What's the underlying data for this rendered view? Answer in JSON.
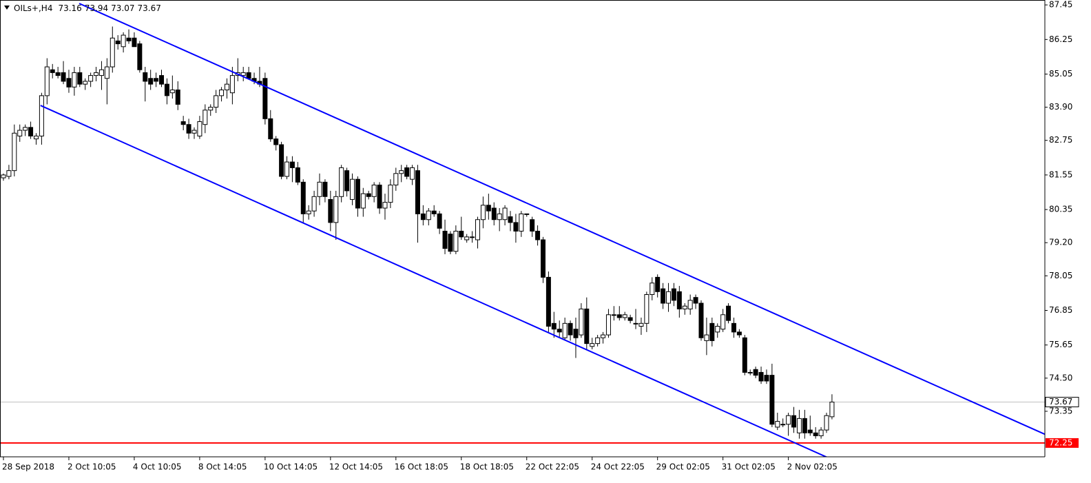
{
  "chart_data": {
    "type": "candlestick",
    "symbol": "OILs+,H4",
    "categories": [
      "28 Sep 2018",
      null,
      null,
      null,
      null,
      null,
      null,
      null,
      null,
      null,
      null,
      null,
      "2 Oct 10:05",
      null,
      null,
      null,
      null,
      null,
      null,
      null,
      null,
      null,
      null,
      null,
      "4 Oct 10:05",
      null,
      null,
      null,
      null,
      null,
      null,
      null,
      null,
      null,
      null,
      null,
      "8 Oct 14:05",
      null,
      null,
      null,
      null,
      null,
      null,
      null,
      null,
      null,
      null,
      null,
      "10 Oct 14:05",
      null,
      null,
      null,
      null,
      null,
      null,
      null,
      null,
      null,
      null,
      null,
      "12 Oct 14:05",
      null,
      null,
      null,
      null,
      null,
      null,
      null,
      null,
      null,
      null,
      null,
      "16 Oct 18:05",
      null,
      null,
      null,
      null,
      null,
      null,
      null,
      null,
      null,
      null,
      null,
      "18 Oct 18:05",
      null,
      null,
      null,
      null,
      null,
      null,
      null,
      null,
      null,
      null,
      null,
      "22 Oct 22:05",
      null,
      null,
      null,
      null,
      null,
      null,
      null,
      null,
      null,
      null,
      null,
      "24 Oct 22:05",
      null,
      null,
      null,
      null,
      null,
      null,
      null,
      null,
      null,
      null,
      null,
      "29 Oct 02:05",
      null,
      null,
      null,
      null,
      null,
      null,
      null,
      null,
      null,
      null,
      null,
      "31 Oct 02:05",
      null,
      null,
      null,
      null,
      null,
      null,
      null,
      null,
      null,
      null,
      null,
      "2 Nov 02:05",
      null,
      null,
      null,
      null,
      null,
      null,
      null,
      null
    ],
    "open": [
      81.45,
      81.5,
      81.7,
      82.9,
      83.1,
      83.2,
      82.8,
      82.9,
      84.3,
      85.2,
      85.1,
      85.1,
      84.9,
      84.6,
      85.1,
      84.7,
      84.8,
      85.0,
      85.0,
      84.9,
      85.3,
      86.2,
      86.0,
      86.3,
      86.3,
      86.1,
      85.1,
      84.9,
      84.9,
      85.0,
      84.7,
      84.4,
      84.5,
      83.4,
      83.3,
      83.0,
      82.9,
      83.3,
      83.8,
      83.9,
      84.3,
      84.5,
      84.4,
      85.0,
      85.0,
      85.1,
      84.9,
      84.8,
      84.9,
      83.5,
      82.8,
      82.6,
      81.5,
      82.0,
      81.8,
      81.3,
      80.2,
      80.3,
      80.8,
      81.3,
      80.7,
      79.9,
      80.8,
      81.7,
      80.7,
      81.4,
      80.4,
      80.9,
      80.8,
      81.2,
      80.4,
      80.6,
      81.2,
      81.6,
      81.8,
      81.4,
      81.7,
      80.2,
      80.0,
      80.3,
      80.2,
      79.6,
      79.5,
      78.9,
      79.6,
      79.3,
      79.4,
      79.3,
      80.0,
      80.5,
      80.4,
      80.0,
      80.0,
      80.1,
      79.9,
      79.6,
      80.2,
      80.0,
      79.6,
      79.3,
      78.0,
      76.4,
      76.2,
      75.9,
      76.4,
      76.2,
      76.0,
      76.9,
      75.6,
      75.7,
      75.9,
      76.0,
      76.7,
      76.7,
      76.6,
      76.6,
      76.4,
      76.3,
      76.4,
      77.4,
      78.0,
      77.6,
      77.1,
      77.6,
      77.5,
      76.9,
      76.9,
      77.3,
      77.1,
      75.8,
      76.4,
      76.1,
      76.2,
      77.0,
      76.4,
      76.1,
      75.9,
      74.7,
      74.8,
      74.7,
      74.6,
      74.6,
      72.8,
      72.9,
      72.9,
      73.2,
      72.6,
      73.1,
      72.7,
      72.6,
      72.5,
      72.7,
      73.16
    ],
    "high": [
      81.6,
      81.9,
      83.3,
      83.3,
      83.3,
      83.4,
      83.0,
      84.4,
      85.6,
      85.4,
      85.3,
      85.5,
      85.2,
      85.3,
      85.3,
      84.9,
      85.1,
      85.3,
      85.5,
      85.6,
      86.7,
      86.4,
      86.5,
      86.6,
      86.5,
      86.2,
      85.3,
      85.2,
      85.1,
      85.2,
      84.9,
      85.0,
      84.8,
      83.6,
      83.5,
      83.2,
      83.6,
      84.0,
      84.0,
      84.5,
      84.6,
      84.9,
      85.3,
      85.6,
      85.3,
      85.3,
      85.1,
      85.3,
      85.1,
      83.8,
      82.9,
      82.7,
      82.2,
      82.2,
      82.0,
      81.4,
      80.5,
      81.0,
      81.6,
      81.4,
      81.0,
      81.0,
      81.9,
      81.8,
      81.6,
      81.5,
      81.1,
      81.0,
      81.3,
      81.3,
      80.9,
      81.4,
      81.8,
      81.9,
      81.9,
      81.9,
      81.9,
      80.5,
      80.4,
      80.5,
      80.3,
      80.0,
      79.6,
      79.8,
      80.1,
      79.5,
      79.6,
      80.1,
      80.8,
      80.9,
      80.6,
      80.4,
      80.5,
      80.3,
      80.2,
      80.3,
      80.2,
      80.1,
      79.8,
      79.4,
      78.2,
      76.8,
      76.5,
      76.6,
      76.5,
      76.6,
      77.1,
      77.3,
      75.9,
      76.0,
      76.1,
      76.9,
      77.0,
      77.0,
      76.8,
      76.7,
      76.9,
      76.6,
      77.5,
      78.0,
      78.1,
      77.8,
      77.8,
      77.8,
      77.7,
      77.1,
      77.4,
      77.4,
      77.2,
      76.6,
      76.6,
      76.4,
      76.9,
      77.1,
      76.6,
      76.2,
      76.0,
      74.8,
      74.9,
      74.9,
      74.8,
      75.0,
      73.3,
      73.1,
      73.3,
      73.5,
      73.4,
      73.4,
      73.2,
      72.8,
      72.8,
      73.3,
      73.94
    ],
    "low": [
      81.35,
      81.4,
      81.5,
      82.7,
      82.9,
      82.8,
      82.6,
      82.6,
      84.0,
      84.9,
      84.9,
      84.7,
      84.4,
      84.3,
      84.6,
      84.5,
      84.6,
      84.8,
      84.5,
      84.0,
      85.1,
      85.9,
      85.8,
      86.1,
      86.0,
      85.1,
      84.1,
      84.5,
      84.6,
      84.6,
      84.0,
      84.2,
      83.8,
      83.1,
      82.8,
      82.8,
      82.8,
      83.0,
      83.6,
      83.7,
      84.1,
      84.2,
      84.0,
      84.8,
      84.8,
      84.9,
      84.7,
      84.6,
      83.3,
      82.7,
      82.4,
      81.4,
      81.4,
      81.3,
      81.2,
      79.9,
      80.0,
      80.1,
      80.5,
      80.6,
      79.6,
      79.3,
      80.6,
      80.8,
      80.5,
      80.1,
      80.1,
      80.7,
      80.6,
      80.2,
      80.0,
      80.4,
      81.0,
      81.3,
      81.4,
      81.2,
      79.2,
      79.8,
      79.8,
      80.1,
      79.5,
      78.8,
      78.8,
      78.8,
      79.3,
      79.2,
      79.2,
      79.0,
      79.7,
      80.0,
      79.8,
      79.6,
      79.8,
      79.6,
      79.2,
      79.4,
      80.1,
      79.4,
      79.1,
      77.8,
      76.1,
      75.9,
      75.9,
      75.8,
      75.8,
      75.2,
      75.9,
      75.5,
      75.5,
      75.6,
      75.7,
      75.9,
      76.5,
      76.5,
      76.5,
      76.4,
      76.2,
      76.0,
      76.1,
      77.2,
      77.3,
      76.9,
      76.8,
      77.0,
      76.6,
      76.7,
      76.7,
      76.9,
      75.8,
      75.3,
      75.6,
      75.9,
      76.1,
      76.4,
      75.9,
      75.9,
      74.6,
      74.6,
      74.5,
      74.3,
      74.3,
      72.8,
      72.7,
      72.8,
      72.5,
      72.6,
      72.4,
      72.4,
      72.5,
      72.4,
      72.4,
      72.6,
      73.07
    ],
    "close": [
      81.55,
      81.7,
      83.0,
      83.1,
      83.2,
      82.9,
      82.9,
      84.3,
      85.3,
      85.1,
      85.0,
      84.8,
      84.6,
      85.1,
      84.7,
      84.8,
      85.0,
      85.1,
      85.2,
      85.3,
      86.3,
      86.1,
      86.4,
      86.2,
      86.0,
      85.2,
      84.8,
      84.7,
      84.8,
      84.7,
      84.3,
      84.5,
      84.0,
      83.3,
      83.0,
      83.1,
      83.4,
      83.8,
      83.9,
      84.3,
      84.5,
      84.7,
      85.0,
      85.1,
      85.1,
      84.9,
      84.8,
      84.7,
      83.5,
      82.8,
      82.6,
      81.5,
      82.0,
      81.8,
      81.3,
      80.2,
      80.3,
      80.8,
      81.3,
      80.8,
      79.9,
      80.8,
      81.8,
      81.0,
      81.4,
      80.4,
      80.9,
      80.8,
      81.2,
      80.4,
      80.6,
      81.2,
      81.6,
      81.7,
      81.5,
      81.8,
      80.2,
      80.0,
      80.3,
      80.2,
      79.7,
      79.0,
      78.9,
      79.6,
      79.4,
      79.4,
      79.4,
      80.0,
      80.5,
      80.3,
      80.0,
      80.2,
      80.4,
      79.9,
      79.6,
      80.2,
      80.2,
      79.6,
      79.3,
      78.0,
      76.3,
      76.2,
      76.1,
      76.4,
      76.0,
      75.9,
      76.9,
      75.7,
      75.7,
      75.9,
      76.0,
      76.7,
      76.7,
      76.6,
      76.7,
      76.5,
      76.4,
      76.4,
      77.4,
      77.8,
      77.5,
      77.1,
      77.5,
      77.2,
      76.9,
      77.0,
      77.2,
      77.1,
      75.9,
      76.0,
      75.8,
      76.3,
      76.7,
      76.5,
      76.1,
      76.0,
      74.7,
      74.7,
      74.6,
      74.4,
      74.4,
      72.9,
      73.0,
      72.9,
      73.2,
      72.8,
      73.1,
      72.6,
      72.6,
      72.5,
      72.7,
      73.2,
      73.67
    ],
    "bull_color": "#ffffff",
    "bear_color": "#000000",
    "ylim": [
      71.77,
      87.62
    ],
    "yticks": [
      87.45,
      86.25,
      85.05,
      {
        "value": 83.9,
        "label": "83.90"
      },
      82.75,
      81.55,
      80.35,
      {
        "value": 79.2,
        "label": "79.20"
      },
      78.05,
      76.85,
      75.65,
      {
        "value": 74.5,
        "label": "74.50"
      },
      73.35
    ],
    "grid": false,
    "trendlines": [
      {
        "color": "#0000ff",
        "x": [
          13.9,
          191.8
        ],
        "y": [
          87.5,
          72.49
        ]
      },
      {
        "color": "#0000ff",
        "x": [
          6.8,
          151.5
        ],
        "y": [
          83.96,
          71.72
        ]
      }
    ],
    "hlines": [
      {
        "value": 72.25,
        "color": "#ff0000"
      }
    ],
    "current_price_color": "#c0c0c0"
  }
}
